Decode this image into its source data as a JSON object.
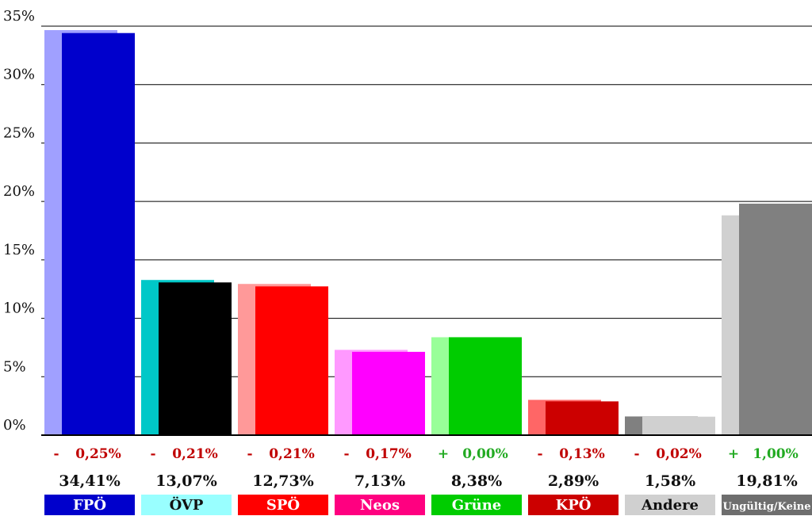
{
  "chart_data": {
    "type": "bar",
    "ylim": [
      0,
      35
    ],
    "yticks": [
      "0%",
      "5%",
      "10%",
      "15%",
      "20%",
      "25%",
      "30%",
      "35%"
    ],
    "grid": true,
    "parties": [
      {
        "label": "FPÖ",
        "value": 34.41,
        "previous": 34.66,
        "value_text": "34,41%",
        "change_sign": "-",
        "change_text": "0,25%",
        "color": "#0000cc",
        "prev_color": "#a0a0ff",
        "label_bg": "#0000cc",
        "label_fg": "#ffffff",
        "change_color": "#c00000"
      },
      {
        "label": "ÖVP",
        "value": 13.07,
        "previous": 13.28,
        "value_text": "13,07%",
        "change_sign": "-",
        "change_text": "0,21%",
        "color": "#000000",
        "prev_color": "#00c8c8",
        "label_bg": "#99ffff",
        "label_fg": "#111111",
        "change_color": "#c00000"
      },
      {
        "label": "SPÖ",
        "value": 12.73,
        "previous": 12.94,
        "value_text": "12,73%",
        "change_sign": "-",
        "change_text": "0,21%",
        "color": "#ff0000",
        "prev_color": "#ff9999",
        "label_bg": "#ff0000",
        "label_fg": "#ffffff",
        "change_color": "#c00000"
      },
      {
        "label": "Neos",
        "value": 7.13,
        "previous": 7.3,
        "value_text": "7,13%",
        "change_sign": "-",
        "change_text": "0,17%",
        "color": "#ff00ff",
        "prev_color": "#ff99ff",
        "label_bg": "#ff0080",
        "label_fg": "#ffffff",
        "change_color": "#c00000"
      },
      {
        "label": "Grüne",
        "value": 8.38,
        "previous": 8.38,
        "value_text": "8,38%",
        "change_sign": "+",
        "change_text": "0,00%",
        "color": "#00cc00",
        "prev_color": "#99ff99",
        "label_bg": "#00cc00",
        "label_fg": "#ffffff",
        "change_color": "#22aa22"
      },
      {
        "label": "KPÖ",
        "value": 2.89,
        "previous": 3.02,
        "value_text": "2,89%",
        "change_sign": "-",
        "change_text": "0,13%",
        "color": "#cc0000",
        "prev_color": "#ff6666",
        "label_bg": "#cc0000",
        "label_fg": "#ffffff",
        "change_color": "#c00000"
      },
      {
        "label": "Andere",
        "value": 1.58,
        "previous": 1.6,
        "value_text": "1,58%",
        "change_sign": "-",
        "change_text": "0,02%",
        "color": "#d0d0d0",
        "prev_color": "#808080",
        "label_bg": "#d0d0d0",
        "label_fg": "#111111",
        "change_color": "#c00000"
      },
      {
        "label": "Ungültig/Keine",
        "value": 19.81,
        "previous": 18.81,
        "value_text": "19,81%",
        "change_sign": "+",
        "change_text": "1,00%",
        "color": "#808080",
        "prev_color": "#d0d0d0",
        "label_bg": "#6e6e6e",
        "label_fg": "#ffffff",
        "change_color": "#22aa22"
      }
    ]
  }
}
